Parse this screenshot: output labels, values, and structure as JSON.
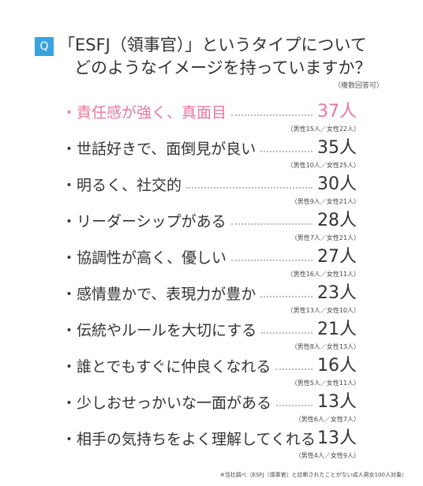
{
  "question": {
    "badge": "Q",
    "line1": "「ESFJ（領事官）」というタイプについて",
    "line2": "どのようなイメージを持っていますか？",
    "note": "（複数回答可）"
  },
  "highlight_color": "#e8789c",
  "chart_data": {
    "type": "table",
    "unit": "人",
    "rows": [
      {
        "label": "・責任感が強く、真面目",
        "value": 37,
        "value_text": "37人",
        "breakdown": "（男性15人／女性22人）",
        "male": 15,
        "female": 22,
        "highlight": true
      },
      {
        "label": "・世話好きで、面倒見が良い",
        "value": 35,
        "value_text": "35人",
        "breakdown": "（男性10人／女性25人）",
        "male": 10,
        "female": 25,
        "highlight": false
      },
      {
        "label": "・明るく、社交的",
        "value": 30,
        "value_text": "30人",
        "breakdown": "（男性9人／女性21人）",
        "male": 9,
        "female": 21,
        "highlight": false
      },
      {
        "label": "・リーダーシップがある",
        "value": 28,
        "value_text": "28人",
        "breakdown": "（男性7人／女性21人）",
        "male": 7,
        "female": 21,
        "highlight": false
      },
      {
        "label": "・協調性が高く、優しい",
        "value": 27,
        "value_text": "27人",
        "breakdown": "（男性16人／女性11人）",
        "male": 16,
        "female": 11,
        "highlight": false
      },
      {
        "label": "・感情豊かで、表現力が豊か",
        "value": 23,
        "value_text": "23人",
        "breakdown": "（男性13人／女性10人）",
        "male": 13,
        "female": 10,
        "highlight": false
      },
      {
        "label": "・伝統やルールを大切にする",
        "value": 21,
        "value_text": "21人",
        "breakdown": "（男性8人／女性13人）",
        "male": 8,
        "female": 13,
        "highlight": false
      },
      {
        "label": "・誰とでもすぐに仲良くなれる",
        "value": 16,
        "value_text": "16人",
        "breakdown": "（男性5人／女性11人）",
        "male": 5,
        "female": 11,
        "highlight": false
      },
      {
        "label": "・少しおせっかいな一面がある",
        "value": 13,
        "value_text": "13人",
        "breakdown": "（男性6人／女性7人）",
        "male": 6,
        "female": 7,
        "highlight": false
      },
      {
        "label": "・相手の気持ちをよく理解してくれる",
        "value": 13,
        "value_text": "13人",
        "breakdown": "（男性4人／女性9人）",
        "male": 4,
        "female": 9,
        "highlight": false
      }
    ]
  },
  "footer": "※当社調べ（ESFJ（領事官）と診断されたことがない成人男女100人対象）"
}
